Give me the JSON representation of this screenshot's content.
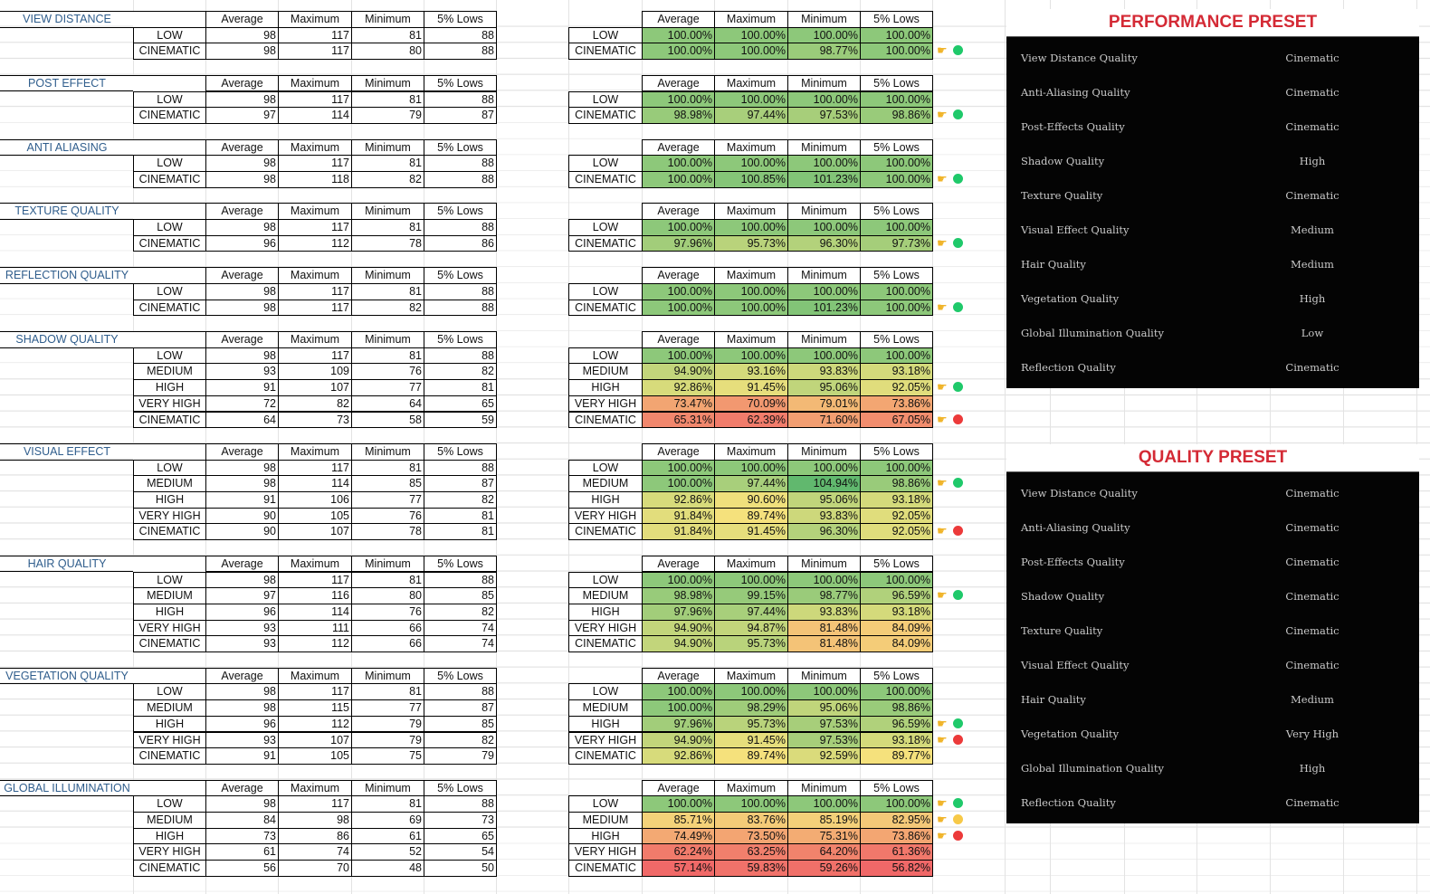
{
  "headers": [
    "Average",
    "Maximum",
    "Minimum",
    "5% Lows"
  ],
  "colors": {
    "green_dot": "#1fc96a",
    "red_dot": "#ec3a3a",
    "yellow_dot": "#f7c948",
    "title_blue": "#2f5d8c",
    "preset_red": "#d42a35"
  },
  "sections": [
    {
      "title": "VIEW DISTANCE",
      "rows": [
        {
          "label": "LOW",
          "fps": [
            "98",
            "117",
            "81",
            "88"
          ],
          "pct": [
            "100.00%",
            "100.00%",
            "100.00%",
            "100.00%"
          ],
          "indicator": null
        },
        {
          "label": "CINEMATIC",
          "fps": [
            "98",
            "117",
            "80",
            "88"
          ],
          "pct": [
            "100.00%",
            "100.00%",
            "98.77%",
            "100.00%"
          ],
          "indicator": "green"
        }
      ]
    },
    {
      "title": "POST EFFECT",
      "rows": [
        {
          "label": "LOW",
          "fps": [
            "98",
            "117",
            "81",
            "88"
          ],
          "pct": [
            "100.00%",
            "100.00%",
            "100.00%",
            "100.00%"
          ],
          "indicator": null
        },
        {
          "label": "CINEMATIC",
          "fps": [
            "97",
            "114",
            "79",
            "87"
          ],
          "pct": [
            "98.98%",
            "97.44%",
            "97.53%",
            "98.86%"
          ],
          "indicator": "green"
        }
      ]
    },
    {
      "title": "ANTI ALIASING",
      "rows": [
        {
          "label": "LOW",
          "fps": [
            "98",
            "117",
            "81",
            "88"
          ],
          "pct": [
            "100.00%",
            "100.00%",
            "100.00%",
            "100.00%"
          ],
          "indicator": null
        },
        {
          "label": "CINEMATIC",
          "fps": [
            "98",
            "118",
            "82",
            "88"
          ],
          "pct": [
            "100.00%",
            "100.85%",
            "101.23%",
            "100.00%"
          ],
          "indicator": "green"
        }
      ]
    },
    {
      "title": "TEXTURE QUALITY",
      "rows": [
        {
          "label": "LOW",
          "fps": [
            "98",
            "117",
            "81",
            "88"
          ],
          "pct": [
            "100.00%",
            "100.00%",
            "100.00%",
            "100.00%"
          ],
          "indicator": null
        },
        {
          "label": "CINEMATIC",
          "fps": [
            "96",
            "112",
            "78",
            "86"
          ],
          "pct": [
            "97.96%",
            "95.73%",
            "96.30%",
            "97.73%"
          ],
          "indicator": "green"
        }
      ]
    },
    {
      "title": "REFLECTION QUALITY",
      "rows": [
        {
          "label": "LOW",
          "fps": [
            "98",
            "117",
            "81",
            "88"
          ],
          "pct": [
            "100.00%",
            "100.00%",
            "100.00%",
            "100.00%"
          ],
          "indicator": null
        },
        {
          "label": "CINEMATIC",
          "fps": [
            "98",
            "117",
            "82",
            "88"
          ],
          "pct": [
            "100.00%",
            "100.00%",
            "101.23%",
            "100.00%"
          ],
          "indicator": "green"
        }
      ]
    },
    {
      "title": "SHADOW QUALITY",
      "rows": [
        {
          "label": "LOW",
          "fps": [
            "98",
            "117",
            "81",
            "88"
          ],
          "pct": [
            "100.00%",
            "100.00%",
            "100.00%",
            "100.00%"
          ],
          "indicator": null
        },
        {
          "label": "MEDIUM",
          "fps": [
            "93",
            "109",
            "76",
            "82"
          ],
          "pct": [
            "94.90%",
            "93.16%",
            "93.83%",
            "93.18%"
          ],
          "indicator": null
        },
        {
          "label": "HIGH",
          "fps": [
            "91",
            "107",
            "77",
            "81"
          ],
          "pct": [
            "92.86%",
            "91.45%",
            "95.06%",
            "92.05%"
          ],
          "indicator": "green"
        },
        {
          "label": "VERY HIGH",
          "fps": [
            "72",
            "82",
            "64",
            "65"
          ],
          "pct": [
            "73.47%",
            "70.09%",
            "79.01%",
            "73.86%"
          ],
          "indicator": null
        },
        {
          "label": "CINEMATIC",
          "fps": [
            "64",
            "73",
            "58",
            "59"
          ],
          "pct": [
            "65.31%",
            "62.39%",
            "71.60%",
            "67.05%"
          ],
          "indicator": "red"
        }
      ]
    },
    {
      "title": "VISUAL EFFECT",
      "rows": [
        {
          "label": "LOW",
          "fps": [
            "98",
            "117",
            "81",
            "88"
          ],
          "pct": [
            "100.00%",
            "100.00%",
            "100.00%",
            "100.00%"
          ],
          "indicator": null
        },
        {
          "label": "MEDIUM",
          "fps": [
            "98",
            "114",
            "85",
            "87"
          ],
          "pct": [
            "100.00%",
            "97.44%",
            "104.94%",
            "98.86%"
          ],
          "indicator": "green"
        },
        {
          "label": "HIGH",
          "fps": [
            "91",
            "106",
            "77",
            "82"
          ],
          "pct": [
            "92.86%",
            "90.60%",
            "95.06%",
            "93.18%"
          ],
          "indicator": null
        },
        {
          "label": "VERY HIGH",
          "fps": [
            "90",
            "105",
            "76",
            "81"
          ],
          "pct": [
            "91.84%",
            "89.74%",
            "93.83%",
            "92.05%"
          ],
          "indicator": null
        },
        {
          "label": "CINEMATIC",
          "fps": [
            "90",
            "107",
            "78",
            "81"
          ],
          "pct": [
            "91.84%",
            "91.45%",
            "96.30%",
            "92.05%"
          ],
          "indicator": "red"
        }
      ]
    },
    {
      "title": "HAIR QUALITY",
      "rows": [
        {
          "label": "LOW",
          "fps": [
            "98",
            "117",
            "81",
            "88"
          ],
          "pct": [
            "100.00%",
            "100.00%",
            "100.00%",
            "100.00%"
          ],
          "indicator": null
        },
        {
          "label": "MEDIUM",
          "fps": [
            "97",
            "116",
            "80",
            "85"
          ],
          "pct": [
            "98.98%",
            "99.15%",
            "98.77%",
            "96.59%"
          ],
          "indicator": "green"
        },
        {
          "label": "HIGH",
          "fps": [
            "96",
            "114",
            "76",
            "82"
          ],
          "pct": [
            "97.96%",
            "97.44%",
            "93.83%",
            "93.18%"
          ],
          "indicator": null
        },
        {
          "label": "VERY HIGH",
          "fps": [
            "93",
            "111",
            "66",
            "74"
          ],
          "pct": [
            "94.90%",
            "94.87%",
            "81.48%",
            "84.09%"
          ],
          "indicator": null
        },
        {
          "label": "CINEMATIC",
          "fps": [
            "93",
            "112",
            "66",
            "74"
          ],
          "pct": [
            "94.90%",
            "95.73%",
            "81.48%",
            "84.09%"
          ],
          "indicator": null
        }
      ]
    },
    {
      "title": "VEGETATION QUALITY",
      "rows": [
        {
          "label": "LOW",
          "fps": [
            "98",
            "117",
            "81",
            "88"
          ],
          "pct": [
            "100.00%",
            "100.00%",
            "100.00%",
            "100.00%"
          ],
          "indicator": null
        },
        {
          "label": "MEDIUM",
          "fps": [
            "98",
            "115",
            "77",
            "87"
          ],
          "pct": [
            "100.00%",
            "98.29%",
            "95.06%",
            "98.86%"
          ],
          "indicator": null
        },
        {
          "label": "HIGH",
          "fps": [
            "96",
            "112",
            "79",
            "85"
          ],
          "pct": [
            "97.96%",
            "95.73%",
            "97.53%",
            "96.59%"
          ],
          "indicator": "green"
        },
        {
          "label": "VERY HIGH",
          "fps": [
            "93",
            "107",
            "79",
            "82"
          ],
          "pct": [
            "94.90%",
            "91.45%",
            "97.53%",
            "93.18%"
          ],
          "indicator": "red"
        },
        {
          "label": "CINEMATIC",
          "fps": [
            "91",
            "105",
            "75",
            "79"
          ],
          "pct": [
            "92.86%",
            "89.74%",
            "92.59%",
            "89.77%"
          ],
          "indicator": null
        }
      ]
    },
    {
      "title": "GLOBAL ILLUMINATION",
      "rows": [
        {
          "label": "LOW",
          "fps": [
            "98",
            "117",
            "81",
            "88"
          ],
          "pct": [
            "100.00%",
            "100.00%",
            "100.00%",
            "100.00%"
          ],
          "indicator": "green"
        },
        {
          "label": "MEDIUM",
          "fps": [
            "84",
            "98",
            "69",
            "73"
          ],
          "pct": [
            "85.71%",
            "83.76%",
            "85.19%",
            "82.95%"
          ],
          "indicator": "yellow"
        },
        {
          "label": "HIGH",
          "fps": [
            "73",
            "86",
            "61",
            "65"
          ],
          "pct": [
            "74.49%",
            "73.50%",
            "75.31%",
            "73.86%"
          ],
          "indicator": "red"
        },
        {
          "label": "VERY HIGH",
          "fps": [
            "61",
            "74",
            "52",
            "54"
          ],
          "pct": [
            "62.24%",
            "63.25%",
            "64.20%",
            "61.36%"
          ],
          "indicator": null
        },
        {
          "label": "CINEMATIC",
          "fps": [
            "56",
            "70",
            "48",
            "50"
          ],
          "pct": [
            "57.14%",
            "59.83%",
            "59.26%",
            "56.82%"
          ],
          "indicator": null
        }
      ]
    }
  ],
  "presets": [
    {
      "title": "PERFORMANCE PRESET",
      "items": [
        {
          "setting": "View Distance Quality",
          "value": "Cinematic"
        },
        {
          "setting": "Anti-Aliasing Quality",
          "value": "Cinematic"
        },
        {
          "setting": "Post-Effects Quality",
          "value": "Cinematic"
        },
        {
          "setting": "Shadow Quality",
          "value": "High"
        },
        {
          "setting": "Texture Quality",
          "value": "Cinematic"
        },
        {
          "setting": "Visual Effect Quality",
          "value": "Medium"
        },
        {
          "setting": "Hair Quality",
          "value": "Medium"
        },
        {
          "setting": "Vegetation Quality",
          "value": "High"
        },
        {
          "setting": "Global Illumination Quality",
          "value": "Low"
        },
        {
          "setting": "Reflection Quality",
          "value": "Cinematic"
        }
      ]
    },
    {
      "title": "QUALITY PRESET",
      "items": [
        {
          "setting": "View Distance Quality",
          "value": "Cinematic"
        },
        {
          "setting": "Anti-Aliasing Quality",
          "value": "Cinematic"
        },
        {
          "setting": "Post-Effects Quality",
          "value": "Cinematic"
        },
        {
          "setting": "Shadow Quality",
          "value": "Cinematic"
        },
        {
          "setting": "Texture Quality",
          "value": "Cinematic"
        },
        {
          "setting": "Visual Effect Quality",
          "value": "Cinematic"
        },
        {
          "setting": "Hair Quality",
          "value": "Medium"
        },
        {
          "setting": "Vegetation Quality",
          "value": "Very High"
        },
        {
          "setting": "Global Illumination Quality",
          "value": "High"
        },
        {
          "setting": "Reflection Quality",
          "value": "Cinematic"
        }
      ]
    }
  ]
}
